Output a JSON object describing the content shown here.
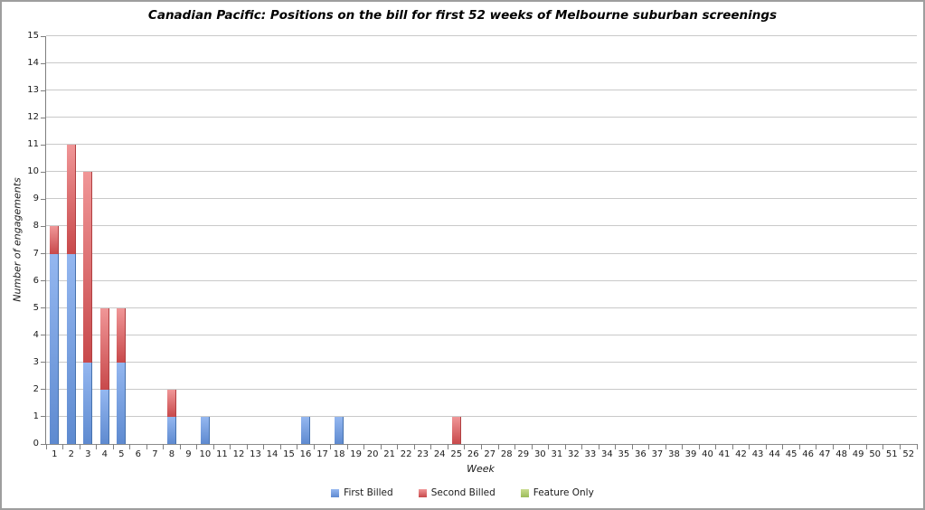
{
  "chart_data": {
    "type": "bar",
    "stacked": true,
    "title": "Canadian Pacific: Positions on the bill for first 52 weeks of Melbourne suburban screenings",
    "xlabel": "Week",
    "ylabel": "Number of engagements",
    "ylim": [
      0,
      15
    ],
    "ytick_step": 1,
    "grid": true,
    "legend_position": "bottom",
    "categories": [
      "1",
      "2",
      "3",
      "4",
      "5",
      "6",
      "7",
      "8",
      "9",
      "10",
      "11",
      "12",
      "13",
      "14",
      "15",
      "16",
      "17",
      "18",
      "19",
      "20",
      "21",
      "22",
      "23",
      "24",
      "25",
      "26",
      "27",
      "28",
      "29",
      "30",
      "31",
      "32",
      "33",
      "34",
      "35",
      "36",
      "37",
      "38",
      "39",
      "40",
      "41",
      "42",
      "43",
      "44",
      "45",
      "46",
      "47",
      "48",
      "49",
      "50",
      "51",
      "52"
    ],
    "series": [
      {
        "name": "First Billed",
        "color": "#4c7ec0",
        "gradient": [
          "#94b7f0",
          "#5e8ad0"
        ],
        "edge": "#4672ae",
        "values": [
          7,
          7,
          3,
          2,
          3,
          0,
          0,
          1,
          0,
          1,
          0,
          0,
          0,
          0,
          0,
          1,
          0,
          1,
          0,
          0,
          0,
          0,
          0,
          0,
          0,
          0,
          0,
          0,
          0,
          0,
          0,
          0,
          0,
          0,
          0,
          0,
          0,
          0,
          0,
          0,
          0,
          0,
          0,
          0,
          0,
          0,
          0,
          0,
          0,
          0,
          0,
          0
        ]
      },
      {
        "name": "Second Billed",
        "color": "#c5484a",
        "gradient": [
          "#f09697",
          "#c8494b"
        ],
        "edge": "#b03f41",
        "values": [
          1,
          4,
          7,
          3,
          2,
          0,
          0,
          1,
          0,
          0,
          0,
          0,
          0,
          0,
          0,
          0,
          0,
          0,
          0,
          0,
          0,
          0,
          0,
          0,
          1,
          0,
          0,
          0,
          0,
          0,
          0,
          0,
          0,
          0,
          0,
          0,
          0,
          0,
          0,
          0,
          0,
          0,
          0,
          0,
          0,
          0,
          0,
          0,
          0,
          0,
          0,
          0
        ]
      },
      {
        "name": "Feature Only",
        "color": "#a8cc63",
        "gradient": [
          "#c9dc8e",
          "#9bbb59"
        ],
        "edge": "#8aa84e",
        "values": [
          0,
          0,
          0,
          0,
          0,
          0,
          0,
          0,
          0,
          0,
          0,
          0,
          0,
          0,
          0,
          0,
          0,
          0,
          0,
          0,
          0,
          0,
          0,
          0,
          0,
          0,
          0,
          0,
          0,
          0,
          0,
          0,
          0,
          0,
          0,
          0,
          0,
          0,
          0,
          0,
          0,
          0,
          0,
          0,
          0,
          0,
          0,
          0,
          0,
          0,
          0,
          0
        ]
      }
    ],
    "axis_colors": {
      "gridline": "#c9c9c9",
      "axis_line": "#7f7f7f",
      "tick_text": "#1a1a1a"
    }
  }
}
